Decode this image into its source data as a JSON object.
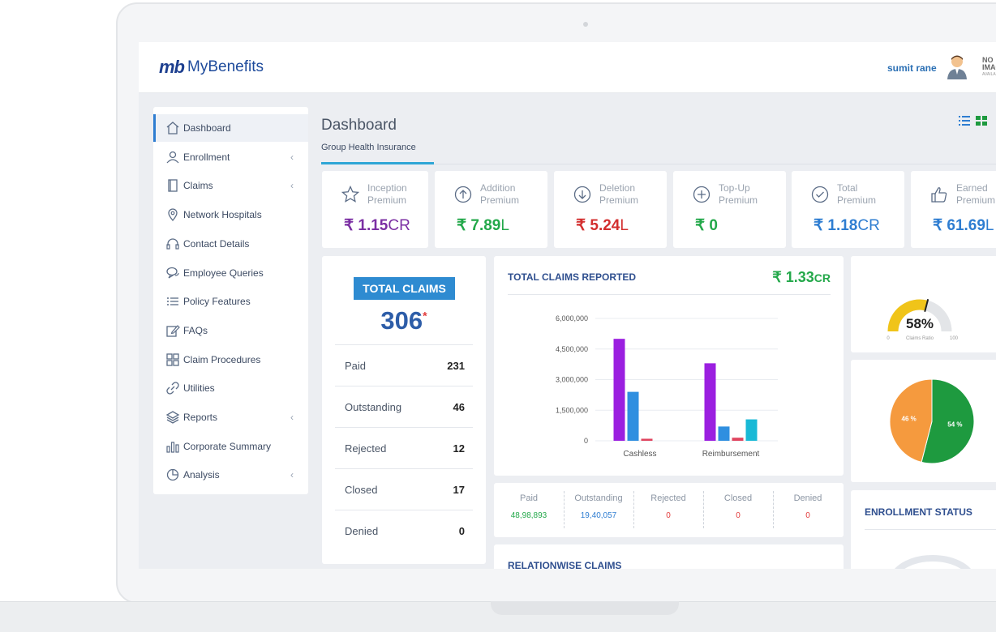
{
  "header": {
    "logo_mark": "mb",
    "logo_text": "MyBenefits",
    "user_name": "sumit rane",
    "no_image_line1": "NO",
    "no_image_line2": "IMAG",
    "no_image_line3": "AVAILA"
  },
  "sidebar": {
    "items": [
      {
        "label": "Dashboard",
        "icon": "home-icon",
        "chevron": false,
        "active": true
      },
      {
        "label": "Enrollment",
        "icon": "user-icon",
        "chevron": true
      },
      {
        "label": "Claims",
        "icon": "document-icon",
        "chevron": true
      },
      {
        "label": "Network Hospitals",
        "icon": "map-pin-icon",
        "chevron": false
      },
      {
        "label": "Contact Details",
        "icon": "headset-icon",
        "chevron": false
      },
      {
        "label": "Employee Queries",
        "icon": "chat-icon",
        "chevron": false
      },
      {
        "label": "Policy Features",
        "icon": "list-icon",
        "chevron": false
      },
      {
        "label": "FAQs",
        "icon": "edit-icon",
        "chevron": false
      },
      {
        "label": "Claim Procedures",
        "icon": "grid-icon",
        "chevron": false
      },
      {
        "label": "Utilities",
        "icon": "link-icon",
        "chevron": false
      },
      {
        "label": "Reports",
        "icon": "layers-icon",
        "chevron": true
      },
      {
        "label": "Corporate Summary",
        "icon": "bar-chart-icon",
        "chevron": false
      },
      {
        "label": "Analysis",
        "icon": "pie-icon",
        "chevron": true
      }
    ],
    "chevron_glyph": "‹"
  },
  "main": {
    "title": "Dashboard",
    "subtab": "Group Health Insurance"
  },
  "premiums": [
    {
      "line1": "Inception",
      "line2": "Premium",
      "currency": "₹",
      "amount": "1.15",
      "unit": "CR",
      "color": "#7b2fa3",
      "icon": "star-icon"
    },
    {
      "line1": "Addition",
      "line2": "Premium",
      "currency": "₹",
      "amount": "7.89",
      "unit": "L",
      "color": "#23a84a",
      "icon": "arrow-up-circle-icon"
    },
    {
      "line1": "Deletion",
      "line2": "Premium",
      "currency": "₹",
      "amount": "5.24",
      "unit": "L",
      "color": "#d32f2f",
      "icon": "arrow-down-circle-icon"
    },
    {
      "line1": "Top-Up",
      "line2": "Premium",
      "currency": "₹",
      "amount": "0",
      "unit": "",
      "color": "#23a84a",
      "icon": "plus-circle-icon"
    },
    {
      "line1": "Total",
      "line2": "Premium",
      "currency": "₹",
      "amount": "1.18",
      "unit": "CR",
      "color": "#2e7dd1",
      "icon": "check-circle-icon"
    },
    {
      "line1": "Earned",
      "line2": "Premium",
      "currency": "₹",
      "amount": "61.69",
      "unit": "L",
      "color": "#2e7dd1",
      "icon": "thumbs-up-icon"
    }
  ],
  "total_claims": {
    "badge": "TOTAL CLAIMS",
    "count": "306",
    "asterisk": "*",
    "rows": [
      {
        "label": "Paid",
        "value": "231"
      },
      {
        "label": "Outstanding",
        "value": "46"
      },
      {
        "label": "Rejected",
        "value": "12"
      },
      {
        "label": "Closed",
        "value": "17"
      },
      {
        "label": "Denied",
        "value": "0"
      }
    ]
  },
  "claims_chart": {
    "title": "TOTAL CLAIMS REPORTED",
    "total_currency": "₹",
    "total_amount": "1.33",
    "total_unit": "CR"
  },
  "chart_data": {
    "type": "bar",
    "title": "",
    "categories": [
      "Cashless",
      "Reimbursement"
    ],
    "series": [
      {
        "values": [
          5000000,
          3800000
        ],
        "color": "#9b1fe0"
      },
      {
        "values": [
          2400000,
          700000
        ],
        "color": "#2f8fe0"
      },
      {
        "values": [
          100000,
          150000
        ],
        "color": "#e0445e"
      },
      {
        "values": [
          0,
          1050000
        ],
        "color": "#19b9d6"
      }
    ],
    "yticks": [
      "6,000,000",
      "4,500,000",
      "3,000,000",
      "1,500,000",
      "0"
    ],
    "ytick_values": [
      6000000,
      4500000,
      3000000,
      1500000,
      0
    ],
    "ylim": [
      0,
      6000000
    ],
    "grid": true
  },
  "claim_stats": [
    {
      "label": "Paid",
      "value": "48,98,893",
      "color": "#23a84a"
    },
    {
      "label": "Outstanding",
      "value": "19,40,057",
      "color": "#2e7dd1"
    },
    {
      "label": "Rejected",
      "value": "0",
      "color": "#e23b3b"
    },
    {
      "label": "Closed",
      "value": "0",
      "color": "#e23b3b"
    },
    {
      "label": "Denied",
      "value": "0",
      "color": "#e23b3b"
    }
  ],
  "relationwise": {
    "title": "RELATIONWISE CLAIMS"
  },
  "gauge": {
    "value": "58%",
    "percent": 58,
    "min": "0",
    "max": "100",
    "label": "Claims Ratio",
    "color": "#f0c419"
  },
  "pie": {
    "slices": [
      {
        "label": "46 %",
        "percent": 46,
        "color": "#f59a3e"
      },
      {
        "label": "54 %",
        "percent": 54,
        "color": "#1e9a3f"
      }
    ]
  },
  "enrollment": {
    "title": "ENROLLMENT STATUS"
  }
}
